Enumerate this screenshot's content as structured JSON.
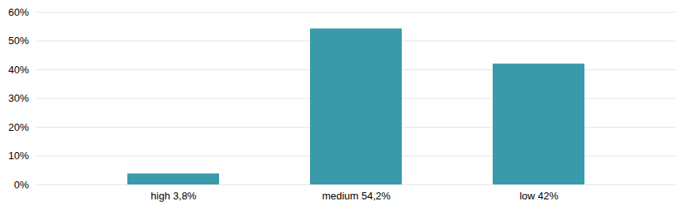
{
  "chart_data": {
    "type": "bar",
    "categories": [
      "high 3,8%",
      "medium 54,2%",
      "low 42%"
    ],
    "values": [
      3.8,
      54.2,
      42.0
    ],
    "color": "#3a9aaa",
    "ylim": [
      0,
      60
    ],
    "yticks": [
      {
        "value": 0,
        "label": "0%"
      },
      {
        "value": 10,
        "label": "10%"
      },
      {
        "value": 20,
        "label": "20%"
      },
      {
        "value": 30,
        "label": "30%"
      },
      {
        "value": 40,
        "label": "40%"
      },
      {
        "value": 50,
        "label": "50%"
      },
      {
        "value": 60,
        "label": "60%"
      }
    ],
    "grid": true
  }
}
